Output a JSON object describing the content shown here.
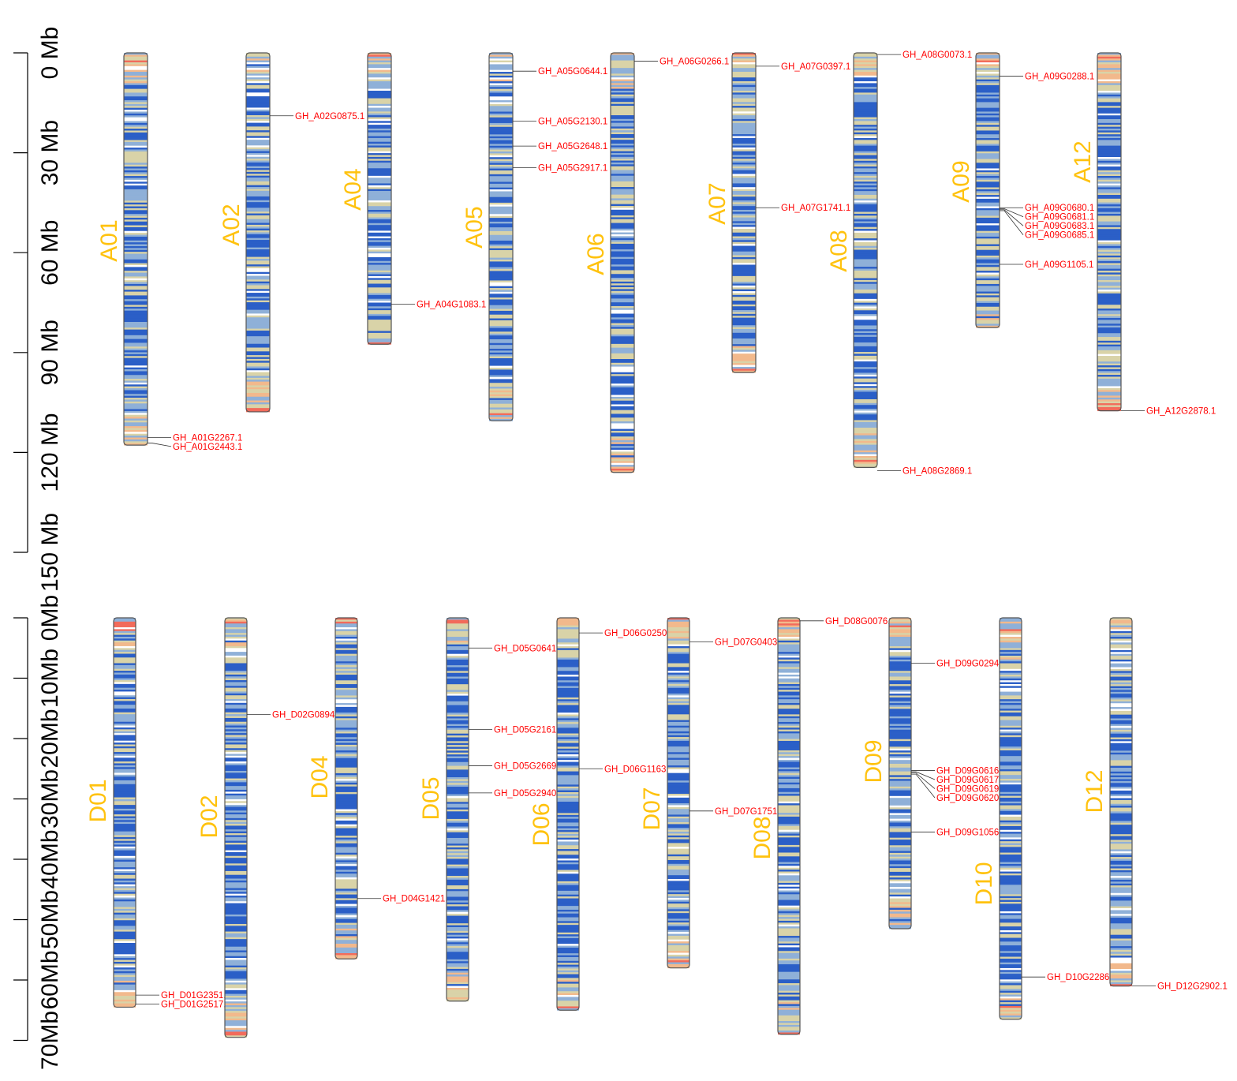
{
  "panels": [
    {
      "id": "A",
      "axis": {
        "max": 150,
        "step": 30,
        "ticks": [
          "0 Mb",
          "30 Mb",
          "60 Mb",
          "90 Mb",
          "120 Mb",
          "150 Mb"
        ]
      },
      "chromosomes": [
        {
          "name": "A01",
          "length": 117.8,
          "genes": [
            {
              "name": "GH_A01G2267.1",
              "pos": 115.5
            },
            {
              "name": "GH_A01G2443.1",
              "pos": 117.2
            }
          ]
        },
        {
          "name": "A02",
          "length": 107.8,
          "genes": [
            {
              "name": "GH_A02G0875.1",
              "pos": 18.9
            }
          ]
        },
        {
          "name": "A04",
          "length": 87.5,
          "genes": [
            {
              "name": "GH_A04G1083.1",
              "pos": 75.5
            }
          ]
        },
        {
          "name": "A05",
          "length": 110.5,
          "genes": [
            {
              "name": "GH_A05G0644.1",
              "pos": 5.5
            },
            {
              "name": "GH_A05G2130.1",
              "pos": 20.5
            },
            {
              "name": "GH_A05G2648.1",
              "pos": 28.0
            },
            {
              "name": "GH_A05G2917.1",
              "pos": 34.5
            }
          ]
        },
        {
          "name": "A06",
          "length": 126.0,
          "genes": [
            {
              "name": "GH_A06G0266.1",
              "pos": 2.5
            }
          ]
        },
        {
          "name": "A07",
          "length": 96.0,
          "genes": [
            {
              "name": "GH_A07G0397.1",
              "pos": 4.0
            },
            {
              "name": "GH_A07G1741.1",
              "pos": 46.5
            }
          ]
        },
        {
          "name": "A08",
          "length": 124.5,
          "genes": [
            {
              "name": "GH_A08G0073.1",
              "pos": 0.5
            },
            {
              "name": "GH_A08G2869.1",
              "pos": 125.5
            }
          ]
        },
        {
          "name": "A09",
          "length": 82.5,
          "genes": [
            {
              "name": "GH_A09G0288.1",
              "pos": 7.0
            },
            {
              "name": "GH_A09G0680.1",
              "pos": 46.5
            },
            {
              "name": "GH_A09G0681.1",
              "pos": 46.8
            },
            {
              "name": "GH_A09G0683.1",
              "pos": 47.1
            },
            {
              "name": "GH_A09G0685.1",
              "pos": 47.4
            },
            {
              "name": "GH_A09G1105.1",
              "pos": 63.5
            }
          ]
        },
        {
          "name": "A12",
          "length": 107.5,
          "genes": [
            {
              "name": "GH_A12G2878.1",
              "pos": 107.5
            }
          ]
        }
      ]
    },
    {
      "id": "D",
      "axis": {
        "max": 70,
        "step": 10,
        "ticks": [
          "0Mb",
          "10Mb",
          "20Mb",
          "30Mb",
          "40Mb",
          "50Mb",
          "60Mb",
          "70Mb"
        ]
      },
      "chromosomes": [
        {
          "name": "D01",
          "length": 64.5,
          "genes": [
            {
              "name": "GH_D01G2351.1",
              "pos": 62.5
            },
            {
              "name": "GH_D01G2517.1",
              "pos": 64.0
            }
          ]
        },
        {
          "name": "D02",
          "length": 69.5,
          "genes": [
            {
              "name": "GH_D02G0894.1",
              "pos": 16.0
            }
          ]
        },
        {
          "name": "D04",
          "length": 56.5,
          "genes": [
            {
              "name": "GH_D04G1421.1",
              "pos": 46.5
            }
          ]
        },
        {
          "name": "D05",
          "length": 63.5,
          "genes": [
            {
              "name": "GH_D05G0641.1",
              "pos": 5.0
            },
            {
              "name": "GH_D05G2161.1",
              "pos": 18.5
            },
            {
              "name": "GH_D05G2669.1",
              "pos": 24.5
            },
            {
              "name": "GH_D05G2940.1",
              "pos": 29.0
            }
          ]
        },
        {
          "name": "D06",
          "length": 65.0,
          "genes": [
            {
              "name": "GH_D06G0250.1",
              "pos": 2.5
            },
            {
              "name": "GH_D06G1163.1",
              "pos": 25.0
            }
          ]
        },
        {
          "name": "D07",
          "length": 58.0,
          "genes": [
            {
              "name": "GH_D07G0403.1",
              "pos": 4.0
            },
            {
              "name": "GH_D07G1751.1",
              "pos": 32.0
            }
          ]
        },
        {
          "name": "D08",
          "length": 69.0,
          "genes": [
            {
              "name": "GH_D08G0076.1",
              "pos": 0.5
            }
          ]
        },
        {
          "name": "D09",
          "length": 51.5,
          "genes": [
            {
              "name": "GH_D09G0294.1",
              "pos": 7.5
            },
            {
              "name": "GH_D09G0616.1",
              "pos": 25.3
            },
            {
              "name": "GH_D09G0617.1",
              "pos": 25.5
            },
            {
              "name": "GH_D09G0619.1",
              "pos": 25.7
            },
            {
              "name": "GH_D09G0620.1",
              "pos": 25.9
            },
            {
              "name": "GH_D09G1056.1",
              "pos": 35.5
            }
          ]
        },
        {
          "name": "D10",
          "length": 66.5,
          "genes": [
            {
              "name": "GH_D10G2286.1",
              "pos": 59.5
            }
          ]
        },
        {
          "name": "D12",
          "length": 61.0,
          "genes": [
            {
              "name": "GH_D12G2902.1",
              "pos": 61.0
            }
          ]
        }
      ]
    }
  ],
  "colors": {
    "label": "#FFC20E",
    "gene": "#FF0000",
    "density_high": "#2B5FC7",
    "density_mid": "#8FB0D8",
    "density_low": "#D9D3A8",
    "density_min": "#F2B98C",
    "density_peak": "#F26B5B"
  }
}
